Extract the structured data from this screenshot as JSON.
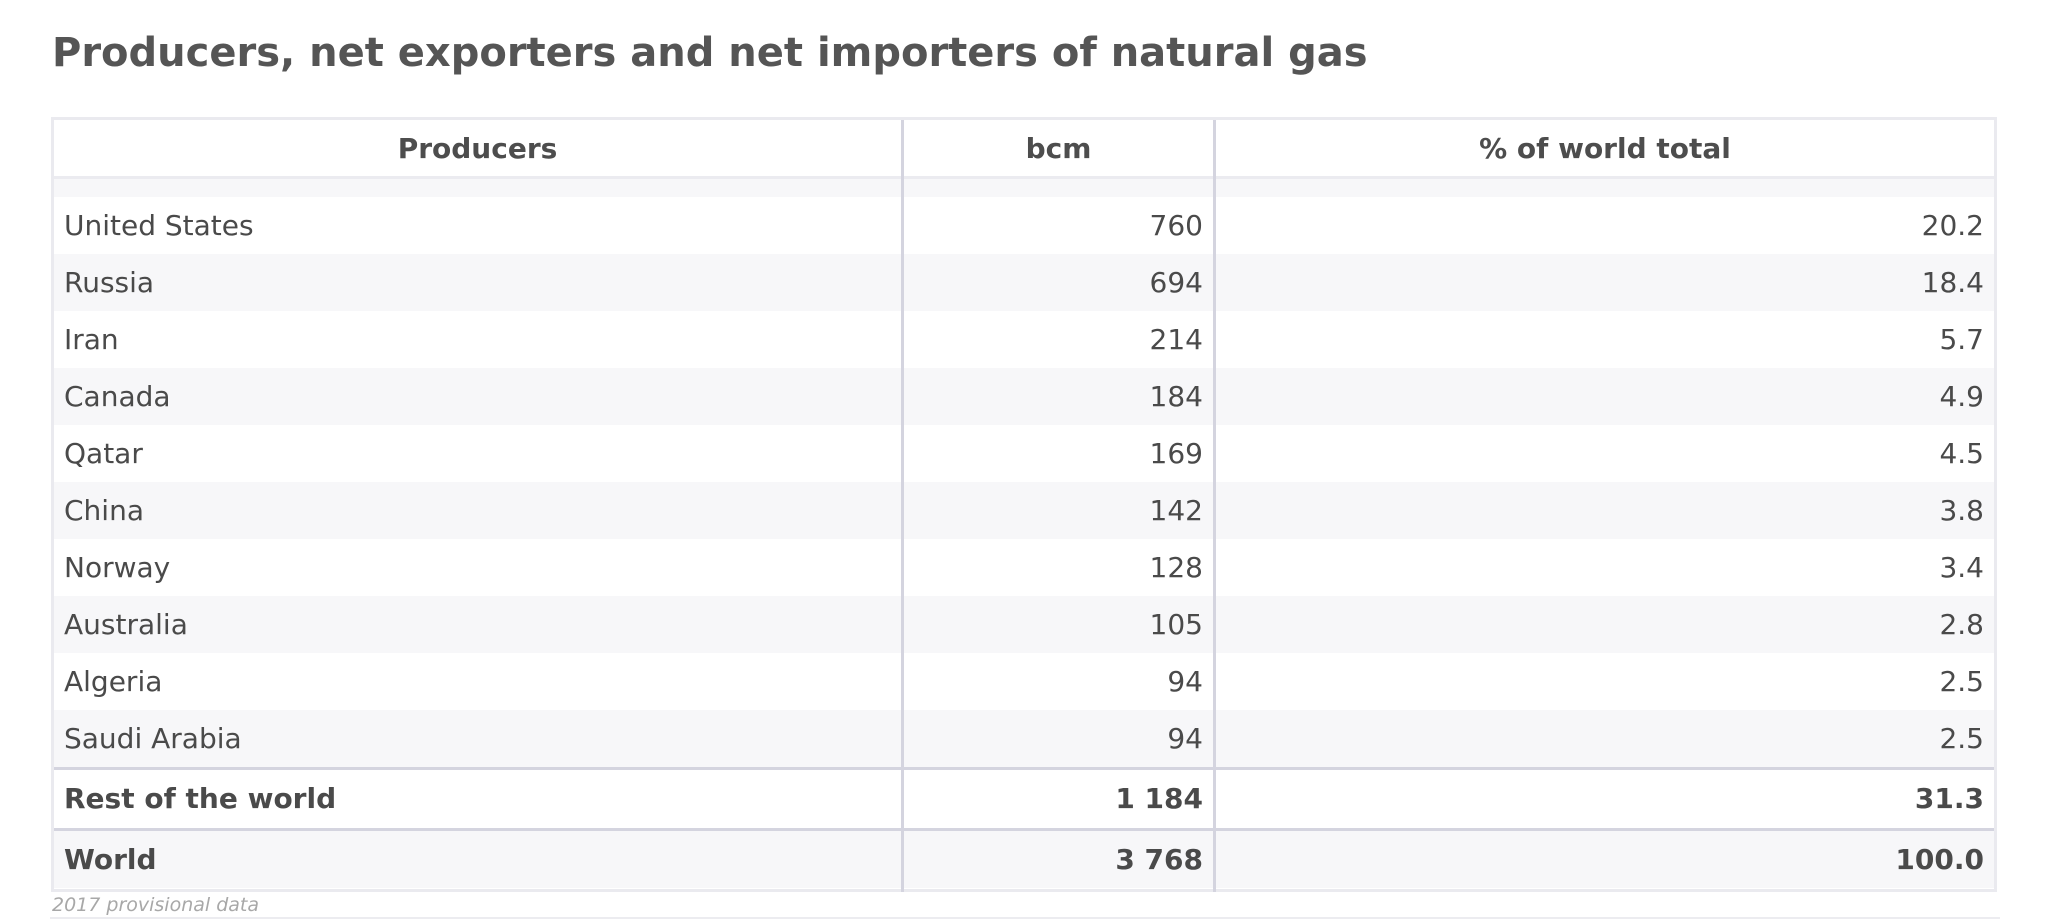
{
  "chart_data": {
    "type": "table",
    "title": "Producers, net exporters and net importers of natural gas",
    "columns": [
      "Producers",
      "bcm",
      "% of world total"
    ],
    "rows": [
      {
        "name": "United States",
        "bcm": "760",
        "pct": "20.2"
      },
      {
        "name": "Russia",
        "bcm": "694",
        "pct": "18.4"
      },
      {
        "name": "Iran",
        "bcm": "214",
        "pct": "5.7"
      },
      {
        "name": "Canada",
        "bcm": "184",
        "pct": "4.9"
      },
      {
        "name": "Qatar",
        "bcm": "169",
        "pct": "4.5"
      },
      {
        "name": "China",
        "bcm": "142",
        "pct": "3.8"
      },
      {
        "name": "Norway",
        "bcm": "128",
        "pct": "3.4"
      },
      {
        "name": "Australia",
        "bcm": "105",
        "pct": "2.8"
      },
      {
        "name": "Algeria",
        "bcm": "94",
        "pct": "2.5"
      },
      {
        "name": "Saudi Arabia",
        "bcm": "94",
        "pct": "2.5"
      }
    ],
    "totals": [
      {
        "name": "Rest of the world",
        "bcm": "1 184",
        "pct": "31.3"
      },
      {
        "name": "World",
        "bcm": "3 768",
        "pct": "100.0"
      }
    ],
    "footnote": "2017 provisional data"
  }
}
